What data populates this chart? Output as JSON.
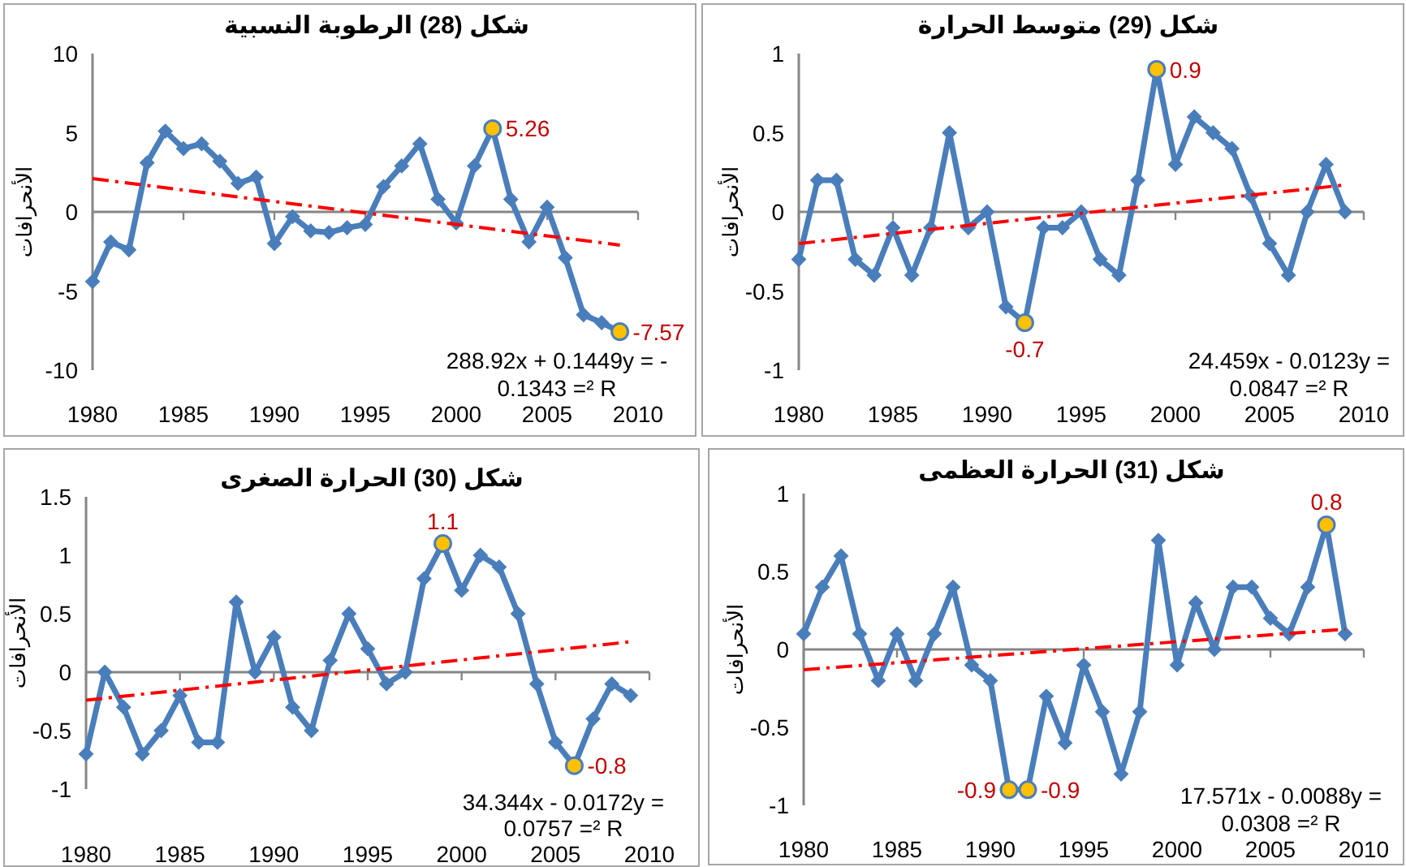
{
  "chart_data": [
    {
      "type": "line",
      "title": "شكل (28) الرطوبة النسبية",
      "ylabel": "الأنحرافات",
      "x": [
        1980,
        1981,
        1982,
        1983,
        1984,
        1985,
        1986,
        1987,
        1988,
        1989,
        1990,
        1991,
        1992,
        1993,
        1994,
        1995,
        1996,
        1997,
        1998,
        1999,
        2000,
        2001,
        2002,
        2003,
        2004,
        2005,
        2006,
        2007,
        2008,
        2009
      ],
      "xlim": [
        1980,
        2010
      ],
      "xticks": [
        1980,
        1985,
        1990,
        1995,
        2000,
        2005,
        2010
      ],
      "ylim": [
        -10,
        10
      ],
      "yticks": [
        -10,
        -5,
        0,
        5,
        10
      ],
      "marker": "diamond",
      "series": [
        {
          "color": "#4a7ebb",
          "values": [
            -4.4,
            -1.9,
            -2.4,
            3.1,
            5.1,
            4.0,
            4.3,
            3.2,
            1.8,
            2.2,
            -2.0,
            -0.3,
            -1.2,
            -1.3,
            -1.0,
            -0.8,
            1.6,
            2.9,
            4.3,
            0.8,
            -0.7,
            2.9,
            5.26,
            0.8,
            -1.9,
            0.3,
            -2.9,
            -6.5,
            -7.0,
            -7.57
          ]
        },
        {
          "type": "scatter",
          "marker": "circle",
          "x": [
            2002,
            2009
          ],
          "values": [
            5.26,
            -7.57
          ],
          "color": "#ffc000",
          "value_labels": [
            "5.26",
            "-7.57"
          ]
        },
        {
          "type": "line",
          "marker": "none",
          "line_style": "dashdot",
          "x": [
            1980,
            2009
          ],
          "values": [
            2.1,
            -2.1
          ],
          "color": "#ff0000"
        }
      ],
      "annotations": [
        "288.92x + 0.1449y = -",
        "0.1343 =² R"
      ]
    },
    {
      "type": "line",
      "title": "شكل (29) متوسط الحرارة",
      "ylabel": "الأنحرافات",
      "x": [
        1980,
        1981,
        1982,
        1983,
        1984,
        1985,
        1986,
        1987,
        1988,
        1989,
        1990,
        1991,
        1992,
        1993,
        1994,
        1995,
        1996,
        1997,
        1998,
        1999,
        2000,
        2001,
        2002,
        2003,
        2004,
        2005,
        2006,
        2007,
        2008,
        2009
      ],
      "xlim": [
        1980,
        2010
      ],
      "xticks": [
        1980,
        1985,
        1990,
        1995,
        2000,
        2005,
        2010
      ],
      "ylim": [
        -1,
        1
      ],
      "yticks": [
        -1,
        -0.5,
        0,
        0.5,
        1
      ],
      "marker": "diamond",
      "series": [
        {
          "color": "#4a7ebb",
          "values": [
            -0.3,
            0.2,
            0.2,
            -0.3,
            -0.4,
            -0.1,
            -0.4,
            -0.1,
            0.5,
            -0.1,
            0,
            -0.6,
            -0.7,
            -0.1,
            -0.1,
            0,
            -0.3,
            -0.4,
            0.2,
            0.9,
            0.3,
            0.6,
            0.5,
            0.4,
            0.1,
            -0.2,
            -0.4,
            0,
            0.3,
            0
          ]
        },
        {
          "type": "scatter",
          "marker": "circle",
          "x": [
            1992,
            1999
          ],
          "values": [
            -0.7,
            0.9
          ],
          "color": "#ffc000",
          "value_labels": [
            "-0.7",
            "0.9"
          ]
        },
        {
          "type": "line",
          "marker": "none",
          "line_style": "dashdot",
          "x": [
            1980,
            2009
          ],
          "values": [
            -0.2,
            0.17
          ],
          "color": "#ff0000"
        }
      ],
      "annotations": [
        "24.459x - 0.0123y =",
        "0.0847 =² R"
      ]
    },
    {
      "type": "line",
      "title": "شكل (30) الحرارة الصغرى",
      "ylabel": "الأنحرافات",
      "x": [
        1980,
        1981,
        1982,
        1983,
        1984,
        1985,
        1986,
        1987,
        1988,
        1989,
        1990,
        1991,
        1992,
        1993,
        1994,
        1995,
        1996,
        1997,
        1998,
        1999,
        2000,
        2001,
        2002,
        2003,
        2004,
        2005,
        2006,
        2007,
        2008,
        2009
      ],
      "xlim": [
        1980,
        2010
      ],
      "xticks": [
        1980,
        1985,
        1990,
        1995,
        2000,
        2005,
        2010
      ],
      "ylim": [
        -1,
        1.5
      ],
      "yticks": [
        -1,
        -0.5,
        0,
        0.5,
        1,
        1.5
      ],
      "marker": "diamond",
      "series": [
        {
          "color": "#4a7ebb",
          "values": [
            -0.7,
            0,
            -0.3,
            -0.7,
            -0.5,
            -0.2,
            -0.6,
            -0.6,
            0.6,
            0,
            0.3,
            -0.3,
            -0.5,
            0.1,
            0.5,
            0.2,
            -0.1,
            0,
            0.8,
            1.1,
            0.7,
            1.0,
            0.9,
            0.5,
            -0.1,
            -0.6,
            -0.8,
            -0.4,
            -0.1,
            -0.2
          ]
        },
        {
          "type": "scatter",
          "marker": "circle",
          "x": [
            1999,
            2006
          ],
          "values": [
            1.1,
            -0.8
          ],
          "color": "#ffc000",
          "value_labels": [
            "1.1",
            "-0.8"
          ]
        },
        {
          "type": "line",
          "marker": "none",
          "line_style": "dashdot",
          "x": [
            1980,
            2009
          ],
          "values": [
            -0.24,
            0.26
          ],
          "color": "#ff0000"
        }
      ],
      "annotations": [
        "34.344x - 0.0172y =",
        "0.0757 =² R"
      ]
    },
    {
      "type": "line",
      "title": "شكل (31) الحرارة العظمى",
      "ylabel": "الأنحرافات",
      "x": [
        1980,
        1981,
        1982,
        1983,
        1984,
        1985,
        1986,
        1987,
        1988,
        1989,
        1990,
        1991,
        1992,
        1993,
        1994,
        1995,
        1996,
        1997,
        1998,
        1999,
        2000,
        2001,
        2002,
        2003,
        2004,
        2005,
        2006,
        2007,
        2008,
        2009
      ],
      "xlim": [
        1980,
        2010
      ],
      "xticks": [
        1980,
        1985,
        1990,
        1995,
        2000,
        2005,
        2010
      ],
      "ylim": [
        -1,
        1
      ],
      "yticks": [
        -1,
        -0.5,
        0,
        0.5,
        1
      ],
      "marker": "diamond",
      "series": [
        {
          "color": "#4a7ebb",
          "values": [
            0.1,
            0.4,
            0.6,
            0.1,
            -0.2,
            0.1,
            -0.2,
            0.1,
            0.4,
            -0.1,
            -0.2,
            -0.9,
            -0.9,
            -0.3,
            -0.6,
            -0.1,
            -0.4,
            -0.8,
            -0.4,
            0.7,
            -0.1,
            0.3,
            0,
            0.4,
            0.4,
            0.2,
            0.1,
            0.4,
            0.8,
            0.1
          ]
        },
        {
          "type": "scatter",
          "marker": "circle",
          "x": [
            1991,
            1992,
            2008
          ],
          "values": [
            -0.9,
            -0.9,
            0.8
          ],
          "color": "#ffc000",
          "value_labels": [
            "-0.9",
            "-0.9",
            "0.8"
          ]
        },
        {
          "type": "line",
          "marker": "none",
          "line_style": "dashdot",
          "x": [
            1980,
            2009
          ],
          "values": [
            -0.13,
            0.13
          ],
          "color": "#ff0000"
        }
      ],
      "annotations": [
        "17.571x - 0.0088y =",
        "0.0308 =² R"
      ]
    }
  ]
}
